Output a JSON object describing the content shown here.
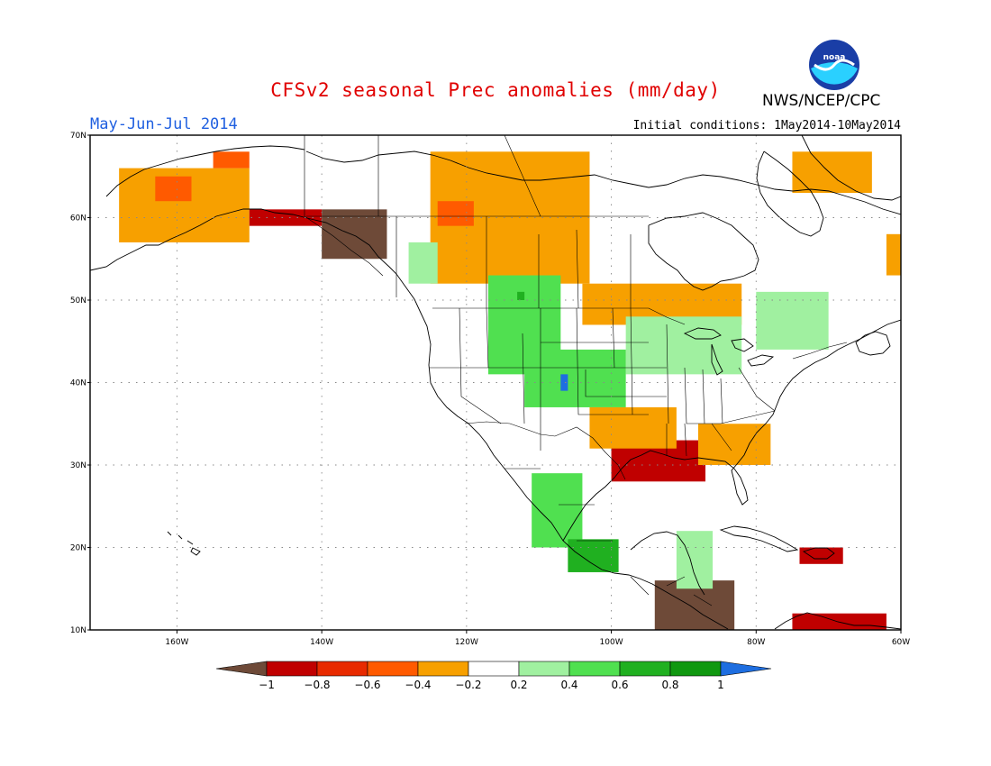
{
  "title": "CFSv2 seasonal Prec anomalies (mm/day)",
  "season": "May-Jun-Jul 2014",
  "initial_conditions": "Initial conditions: 1May2014-10May2014",
  "agency": "NWS/NCEP/CPC",
  "logo_text": "noaa",
  "map": {
    "lon_range": [
      -172,
      -60
    ],
    "lat_range": [
      10,
      70
    ],
    "lat_labels": [
      "10N",
      "20N",
      "30N",
      "40N",
      "50N",
      "60N",
      "70N"
    ],
    "lat_values": [
      10,
      20,
      30,
      40,
      50,
      60,
      70
    ],
    "lon_labels": [
      "160W",
      "140W",
      "120W",
      "100W",
      "80W",
      "60W"
    ],
    "lon_values": [
      -160,
      -140,
      -120,
      -100,
      -80,
      -60
    ],
    "grid": "dotted"
  },
  "colorbar": {
    "labels": [
      "−1",
      "−0.8",
      "−0.6",
      "−0.4",
      "−0.2",
      "0.2",
      "0.4",
      "0.6",
      "0.8",
      "1"
    ],
    "colors": [
      "#6e4a38",
      "#c00000",
      "#e82a00",
      "#ff5a00",
      "#f7a000",
      "#ffffff",
      "#a0f0a0",
      "#50e050",
      "#20b020",
      "#109810",
      "#1e6ee0"
    ]
  },
  "colors": {
    "title": "#e00000",
    "season": "#1f5fe0",
    "dry_strong": "#6e4a38",
    "dry": "#c00000",
    "dry_moderate": "#ff5a00",
    "dry_light": "#f7a000",
    "wet_light": "#a0f0a0",
    "wet": "#50e050",
    "wet_strong": "#20b020",
    "wet_max": "#1e6ee0"
  },
  "anomaly_regions": [
    {
      "name": "alaska-west",
      "category": -0.4,
      "lon": [
        -168,
        -150
      ],
      "lat": [
        57,
        66
      ]
    },
    {
      "name": "alaska-west-core",
      "category": -0.6,
      "lon": [
        -163,
        -158
      ],
      "lat": [
        62,
        65
      ]
    },
    {
      "name": "alaska-central-core",
      "category": -0.6,
      "lon": [
        -155,
        -150
      ],
      "lat": [
        66,
        68
      ]
    },
    {
      "name": "alaska-panhandle",
      "category": -1,
      "lon": [
        -140,
        -131
      ],
      "lat": [
        55,
        61
      ]
    },
    {
      "name": "alaska-coast-dry",
      "category": -0.8,
      "lon": [
        -150,
        -140
      ],
      "lat": [
        59,
        61
      ]
    },
    {
      "name": "yukon-nwt",
      "category": -0.4,
      "lon": [
        -125,
        -103
      ],
      "lat": [
        52,
        68
      ]
    },
    {
      "name": "yukon-nwt-core",
      "category": -0.6,
      "lon": [
        -124,
        -119
      ],
      "lat": [
        59,
        62
      ]
    },
    {
      "name": "bc-coast-green",
      "category": 0.4,
      "lon": [
        -128,
        -124
      ],
      "lat": [
        52,
        57
      ]
    },
    {
      "name": "canada-prairie-dry",
      "category": -0.4,
      "lon": [
        -104,
        -82
      ],
      "lat": [
        47,
        52
      ]
    },
    {
      "name": "hudson-east-dry",
      "category": -0.4,
      "lon": [
        -75,
        -64
      ],
      "lat": [
        63,
        68
      ]
    },
    {
      "name": "labrador-dry",
      "category": -0.4,
      "lon": [
        -62,
        -60
      ],
      "lat": [
        53,
        58
      ]
    },
    {
      "name": "quebec-wet",
      "category": 0.4,
      "lon": [
        -80,
        -70
      ],
      "lat": [
        44,
        51
      ]
    },
    {
      "name": "great-lakes-wet",
      "category": 0.4,
      "lon": [
        -98,
        -82
      ],
      "lat": [
        41,
        48
      ]
    },
    {
      "name": "montana-wet",
      "category": 0.6,
      "lon": [
        -117,
        -107
      ],
      "lat": [
        41,
        53
      ]
    },
    {
      "name": "montana-core",
      "category": 0.8,
      "lon": [
        -113,
        -112
      ],
      "lat": [
        50,
        51
      ]
    },
    {
      "name": "colorado-wet",
      "category": 0.6,
      "lon": [
        -112,
        -98
      ],
      "lat": [
        37,
        44
      ]
    },
    {
      "name": "colorado-core",
      "category": 1,
      "lon": [
        -107,
        -106
      ],
      "lat": [
        39,
        41
      ]
    },
    {
      "name": "mexico-west-wet",
      "category": 0.6,
      "lon": [
        -111,
        -104
      ],
      "lat": [
        20,
        29
      ]
    },
    {
      "name": "mexico-south-wet",
      "category": 0.8,
      "lon": [
        -106,
        -99
      ],
      "lat": [
        17,
        21
      ]
    },
    {
      "name": "texas-gulf-dry",
      "category": -0.8,
      "lon": [
        -100,
        -87
      ],
      "lat": [
        28,
        33
      ]
    },
    {
      "name": "southeast-dry",
      "category": -0.4,
      "lon": [
        -88,
        -78
      ],
      "lat": [
        30,
        35
      ]
    },
    {
      "name": "oklahoma-dry",
      "category": -0.4,
      "lon": [
        -103,
        -91
      ],
      "lat": [
        32,
        37
      ]
    },
    {
      "name": "central-america-dry",
      "category": -1,
      "lon": [
        -94,
        -83
      ],
      "lat": [
        10,
        16
      ]
    },
    {
      "name": "yucatan-wet",
      "category": 0.4,
      "lon": [
        -91,
        -86
      ],
      "lat": [
        15,
        22
      ]
    },
    {
      "name": "caribbean-dry",
      "category": -0.8,
      "lon": [
        -74,
        -68
      ],
      "lat": [
        18,
        20
      ]
    },
    {
      "name": "south-caribbean-dry",
      "category": -0.8,
      "lon": [
        -75,
        -62
      ],
      "lat": [
        10,
        12
      ]
    }
  ]
}
